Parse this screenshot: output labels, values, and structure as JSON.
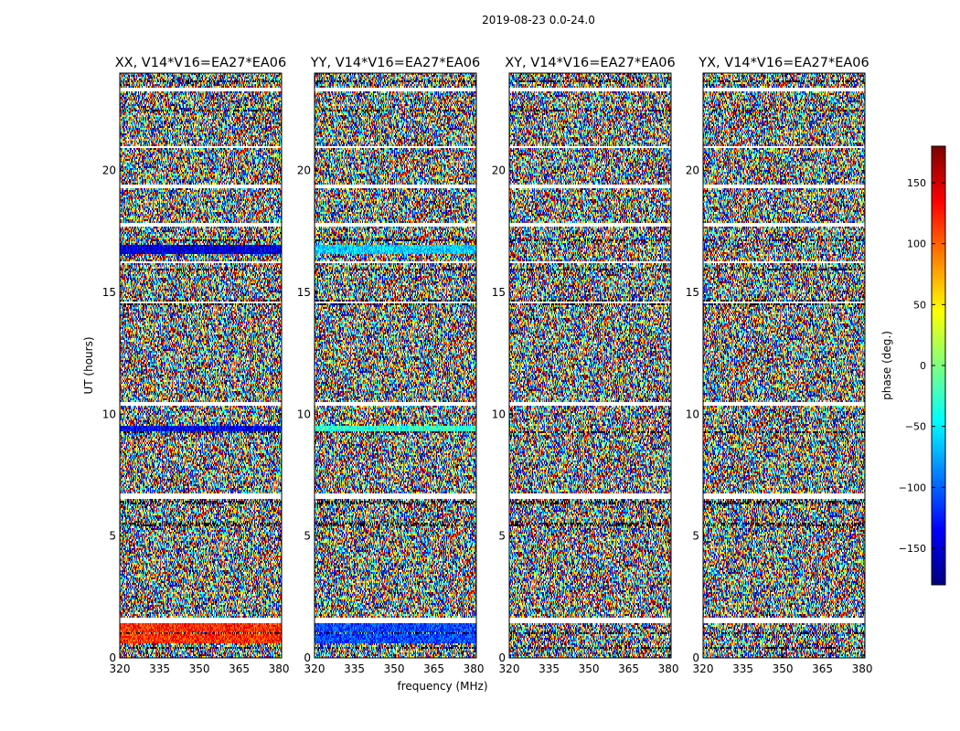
{
  "figure": {
    "suptitle": "2019-08-23 0.0-24.0"
  },
  "chart_data": {
    "type": "heatmap",
    "xlabel": "frequency (MHz)",
    "ylabel": "UT (hours)",
    "xlim": [
      320,
      381
    ],
    "ylim": [
      0,
      24
    ],
    "xticks": [
      320,
      335,
      350,
      365,
      380
    ],
    "yticks": [
      0,
      5,
      10,
      15,
      20
    ],
    "panels": [
      {
        "title": "XX, V14*V16=EA27*EA06",
        "polarization": "XX"
      },
      {
        "title": "YY, V14*V16=EA27*EA06",
        "polarization": "YY"
      },
      {
        "title": "XY, V14*V16=EA27*EA06",
        "polarization": "XY"
      },
      {
        "title": "YX, V14*V16=EA27*EA06",
        "polarization": "YX"
      }
    ],
    "colorbar": {
      "label": "phase (deg.)",
      "range": [
        -180,
        180
      ],
      "ticks": [
        -150,
        -100,
        -50,
        0,
        50,
        100,
        150
      ],
      "colormap": "jet"
    },
    "flagged_hours": [
      [
        1.45,
        1.62
      ],
      [
        3.42,
        3.48
      ],
      [
        6.52,
        6.72
      ],
      [
        8.52,
        8.56
      ],
      [
        10.32,
        10.48
      ],
      [
        14.52,
        14.62
      ],
      [
        16.22,
        16.3
      ],
      [
        17.72,
        17.86
      ],
      [
        19.25,
        19.45
      ],
      [
        20.95,
        21.0
      ],
      [
        23.25,
        23.4
      ]
    ],
    "dark_rows_hours": [
      [
        0.35,
        0.42
      ],
      [
        1.0,
        1.08
      ],
      [
        5.4,
        5.55
      ],
      [
        6.3,
        6.45
      ],
      [
        9.2,
        9.28
      ],
      [
        14.45,
        14.52
      ],
      [
        14.62,
        14.72
      ],
      [
        15.9,
        16.0
      ],
      [
        17.1,
        17.2
      ],
      [
        22.4,
        22.48
      ],
      [
        23.6,
        23.7
      ]
    ],
    "coherent_rows": [
      {
        "panel": "XX",
        "hours": [
          16.55,
          16.95
        ],
        "phase": -150
      },
      {
        "panel": "XX",
        "hours": [
          9.3,
          9.55
        ],
        "phase": -140
      },
      {
        "panel": "XX",
        "hours": [
          0.6,
          1.4
        ],
        "phase": 120
      },
      {
        "panel": "YY",
        "hours": [
          16.55,
          16.95
        ],
        "phase": -60
      },
      {
        "panel": "YY",
        "hours": [
          9.3,
          9.55
        ],
        "phase": -30
      },
      {
        "panel": "YY",
        "hours": [
          0.6,
          1.4
        ],
        "phase": -110
      }
    ]
  }
}
